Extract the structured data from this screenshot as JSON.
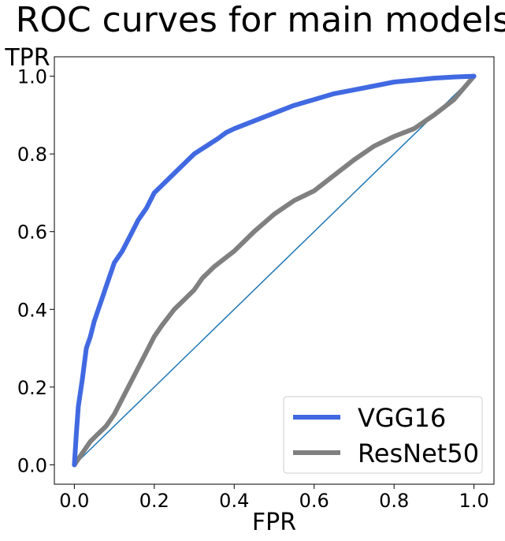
{
  "chart_data": {
    "type": "line",
    "title": "ROC curves for main models",
    "xlabel": "FPR",
    "ylabel": "TPR",
    "xlim": [
      -0.05,
      1.05
    ],
    "ylim": [
      -0.05,
      1.05
    ],
    "xticks": [
      0.0,
      0.2,
      0.4,
      0.6,
      0.8,
      1.0
    ],
    "yticks": [
      0.0,
      0.2,
      0.4,
      0.6,
      0.8,
      1.0
    ],
    "xtick_labels": [
      "0.0",
      "0.2",
      "0.4",
      "0.6",
      "0.8",
      "1.0"
    ],
    "ytick_labels": [
      "0.0",
      "0.2",
      "0.4",
      "0.6",
      "0.8",
      "1.0"
    ],
    "grid": false,
    "legend_position": "bottom-right",
    "series": [
      {
        "name": "VGG16",
        "color": "#4169e1",
        "x": [
          0.0,
          0.005,
          0.01,
          0.02,
          0.03,
          0.04,
          0.05,
          0.06,
          0.07,
          0.08,
          0.09,
          0.1,
          0.12,
          0.14,
          0.16,
          0.18,
          0.2,
          0.22,
          0.25,
          0.28,
          0.3,
          0.33,
          0.36,
          0.38,
          0.4,
          0.45,
          0.5,
          0.55,
          0.6,
          0.65,
          0.7,
          0.75,
          0.8,
          0.85,
          0.9,
          0.95,
          1.0
        ],
        "y": [
          0.0,
          0.08,
          0.15,
          0.22,
          0.3,
          0.33,
          0.37,
          0.4,
          0.43,
          0.46,
          0.49,
          0.52,
          0.55,
          0.59,
          0.63,
          0.66,
          0.7,
          0.72,
          0.75,
          0.78,
          0.8,
          0.82,
          0.84,
          0.855,
          0.865,
          0.885,
          0.905,
          0.925,
          0.94,
          0.955,
          0.965,
          0.975,
          0.985,
          0.99,
          0.995,
          0.998,
          1.0
        ]
      },
      {
        "name": "ResNet50",
        "color": "#808080",
        "x": [
          0.0,
          0.02,
          0.04,
          0.06,
          0.08,
          0.1,
          0.12,
          0.14,
          0.16,
          0.18,
          0.2,
          0.22,
          0.25,
          0.28,
          0.3,
          0.32,
          0.35,
          0.4,
          0.45,
          0.5,
          0.55,
          0.6,
          0.65,
          0.7,
          0.75,
          0.8,
          0.85,
          0.9,
          0.95,
          1.0
        ],
        "y": [
          0.0,
          0.03,
          0.06,
          0.08,
          0.1,
          0.13,
          0.17,
          0.21,
          0.25,
          0.29,
          0.33,
          0.36,
          0.4,
          0.43,
          0.45,
          0.48,
          0.51,
          0.55,
          0.6,
          0.645,
          0.68,
          0.705,
          0.745,
          0.785,
          0.82,
          0.845,
          0.865,
          0.9,
          0.94,
          1.0
        ]
      },
      {
        "color": "#1f77b4",
        "x": [
          0.0,
          1.0
        ],
        "y": [
          0.0,
          1.0
        ]
      }
    ]
  }
}
